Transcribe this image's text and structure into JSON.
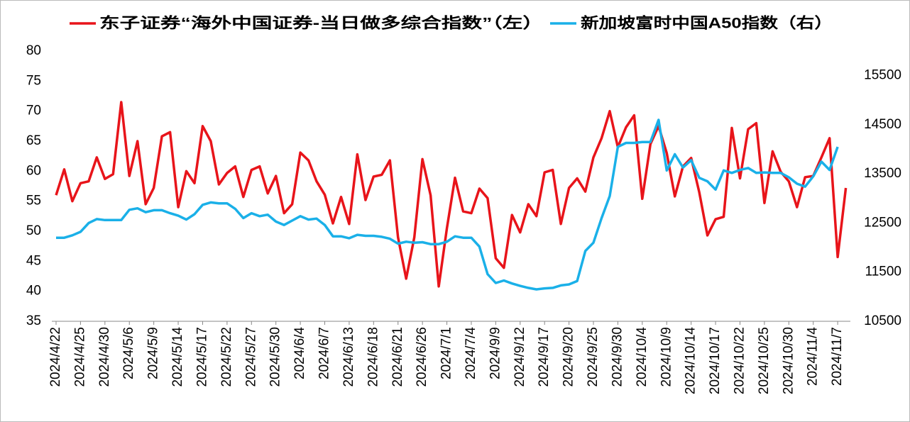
{
  "chart_data": {
    "type": "line",
    "legend": "top",
    "categories": [
      "2024/4/22",
      null,
      null,
      "2024/4/25",
      null,
      null,
      "2024/4/30",
      null,
      null,
      "2024/5/6",
      null,
      null,
      "2024/5/9",
      null,
      null,
      "2024/5/14",
      null,
      null,
      "2024/5/17",
      null,
      null,
      "2024/5/22",
      null,
      null,
      "2024/5/27",
      null,
      null,
      "2024/5/30",
      null,
      null,
      "2024/6/4",
      null,
      null,
      "2024/6/7",
      null,
      null,
      "2024/6/13",
      null,
      null,
      "2024/6/18",
      null,
      null,
      "2024/6/21",
      null,
      null,
      "2024/6/26",
      null,
      null,
      "2024/7/1",
      null,
      null,
      "2024/7/4",
      null,
      null,
      "2024/9/9",
      null,
      null,
      "2024/9/12",
      null,
      null,
      "2024/9/17",
      null,
      null,
      "2024/9/20",
      null,
      null,
      "2024/9/25",
      null,
      null,
      "2024/9/30",
      null,
      null,
      "2024/10/4",
      null,
      null,
      "2024/10/9",
      null,
      null,
      "2024/10/14",
      null,
      null,
      "2024/10/17",
      null,
      null,
      "2024/10/22",
      null,
      null,
      "2024/10/25",
      null,
      null,
      "2024/10/30",
      null,
      null,
      "2024/11/4",
      null,
      null,
      "2024/11/7",
      null
    ],
    "series": [
      {
        "name": "东子证券“海外中国证券-当日做多综合指数”（左）",
        "color": "#e8141a",
        "axis": "y",
        "values": [
          56,
          60.3,
          55,
          58,
          58.3,
          62.3,
          58.7,
          59.5,
          71.5,
          59.2,
          65,
          54.5,
          57.2,
          65.8,
          66.5,
          54,
          60,
          58,
          67.5,
          65,
          57.8,
          59.7,
          60.8,
          55.7,
          60.2,
          60.8,
          56.3,
          59.2,
          53,
          54.5,
          63.1,
          61.8,
          58.3,
          56.1,
          51.3,
          55.7,
          51.2,
          62.8,
          55.2,
          59.1,
          59.4,
          61.8,
          49,
          42.1,
          49,
          62,
          56,
          40.8,
          50.5,
          58.9,
          53.3,
          53,
          57.1,
          55.5,
          45.5,
          43.9,
          52.7,
          49.8,
          54.5,
          52.5,
          59.8,
          60.2,
          51.2,
          57.2,
          58.8,
          56.6,
          62.3,
          65.5,
          70,
          64,
          67.3,
          69.3,
          55.4,
          64.5,
          67.5,
          63,
          55.8,
          60.8,
          62.2,
          56.5,
          49.3,
          52,
          52.4,
          67.2,
          58.8,
          67,
          68,
          54.7,
          63.3,
          59.9,
          58.3,
          54,
          59,
          59.2,
          62.3,
          65.5,
          45.7,
          57.2
        ]
      },
      {
        "name": "新加坡富时中国A50指数（右）",
        "color": "#1ab0e8",
        "axis": "y2",
        "values": [
          12200,
          12200,
          12250,
          12320,
          12500,
          12580,
          12560,
          12560,
          12560,
          12770,
          12800,
          12720,
          12760,
          12760,
          12700,
          12650,
          12570,
          12680,
          12870,
          12920,
          12900,
          12900,
          12790,
          12600,
          12700,
          12640,
          12670,
          12530,
          12460,
          12550,
          12640,
          12570,
          12590,
          12460,
          12230,
          12230,
          12190,
          12260,
          12240,
          12240,
          12220,
          12180,
          12080,
          12120,
          12100,
          12110,
          12070,
          12070,
          12120,
          12230,
          12200,
          12200,
          12020,
          11460,
          11280,
          11330,
          11270,
          11220,
          11180,
          11150,
          11170,
          11180,
          11230,
          11250,
          11320,
          11930,
          12100,
          12600,
          13050,
          14050,
          14130,
          14130,
          14150,
          14150,
          14600,
          13570,
          13900,
          13630,
          13780,
          13420,
          13350,
          13180,
          13570,
          13520,
          13580,
          13620,
          13520,
          13530,
          13520,
          13520,
          13430,
          13300,
          13240,
          13450,
          13750,
          13580,
          14050,
          null
        ]
      }
    ],
    "ylim": [
      35,
      80
    ],
    "yticks": [
      35,
      40,
      45,
      50,
      55,
      60,
      65,
      70,
      75,
      80
    ],
    "y2lim": [
      10500,
      16000
    ],
    "y2ticks": [
      10500,
      11500,
      12500,
      13500,
      14500,
      15500
    ],
    "grid": false
  }
}
